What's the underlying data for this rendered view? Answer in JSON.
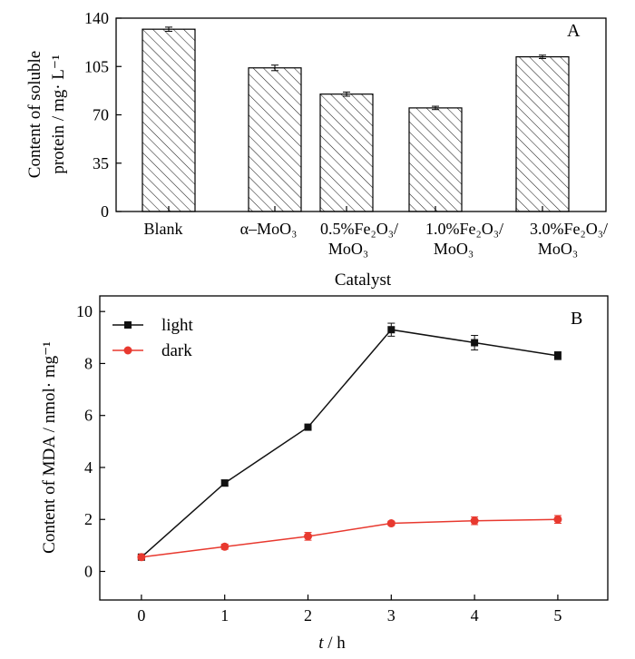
{
  "chart_data": [
    {
      "type": "bar",
      "panel": "A",
      "categories": [
        {
          "line1": "Blank",
          "line2": ""
        },
        {
          "line1": "α–MoO₃",
          "line2": ""
        },
        {
          "line1": "0.5%Fe₂O₃/",
          "line2": "MoO₃"
        },
        {
          "line1": "1.0%Fe₂O₃/",
          "line2": "MoO₃"
        },
        {
          "line1": "3.0%Fe₂O₃/",
          "line2": "MoO₃"
        }
      ],
      "values": [
        132,
        104,
        85,
        75,
        112
      ],
      "errors": [
        1.5,
        2,
        1.5,
        1.2,
        1.2
      ],
      "xlabel": "Catalyst",
      "ylabel_line1": "Content of soluble",
      "ylabel_line2": "protein / mg· L⁻¹",
      "ylim": [
        0,
        140
      ],
      "yticks": [
        "0",
        "35",
        "70",
        "105",
        "140"
      ],
      "bar_pattern": "diagonal-hatch"
    },
    {
      "type": "line",
      "panel": "B",
      "x": [
        0,
        1,
        2,
        3,
        4,
        5
      ],
      "xticks": [
        "0",
        "1",
        "2",
        "3",
        "4",
        "5"
      ],
      "yticks": [
        "0",
        "2",
        "4",
        "6",
        "8",
        "10"
      ],
      "xlim": [
        -0.5,
        5.6
      ],
      "ylim": [
        -1.1,
        10.6
      ],
      "xlabel_var": "t",
      "xlabel_unit": " / h",
      "ylabel": "Content of MDA / nmol· mg⁻¹",
      "legend_position": "top-left",
      "series": [
        {
          "name": "light",
          "color": "#111111",
          "marker": "square",
          "values": [
            0.55,
            3.4,
            5.55,
            9.3,
            8.8,
            8.3
          ],
          "errors": [
            0.1,
            0.12,
            0.08,
            0.25,
            0.28,
            0.15
          ]
        },
        {
          "name": "dark",
          "color": "#e8392f",
          "marker": "circle",
          "values": [
            0.55,
            0.95,
            1.35,
            1.85,
            1.95,
            2.0
          ],
          "errors": [
            0.08,
            0.1,
            0.15,
            0.08,
            0.15,
            0.15
          ]
        }
      ]
    }
  ]
}
